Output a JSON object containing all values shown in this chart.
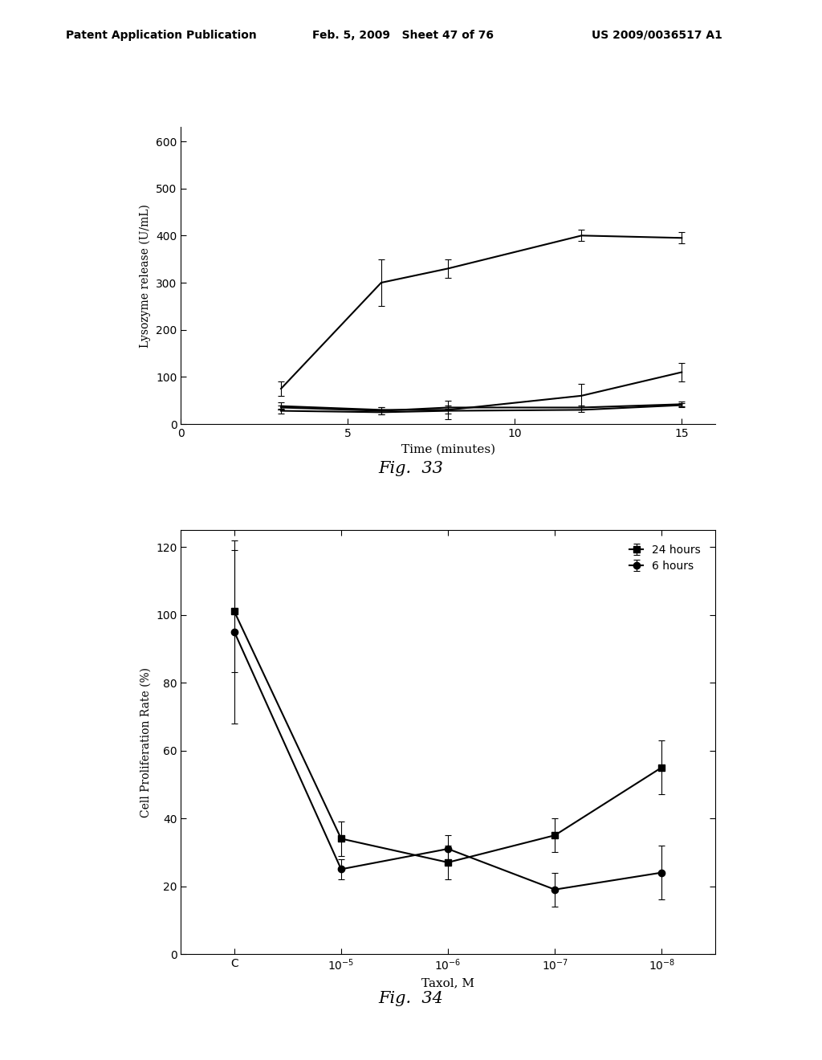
{
  "fig33": {
    "title": "Fig.  33",
    "xlabel": "Time (minutes)",
    "ylabel": "Lysozyme release (U/mL)",
    "xlim": [
      0,
      16
    ],
    "ylim": [
      0,
      630
    ],
    "yticks": [
      0,
      100,
      200,
      300,
      400,
      500,
      600
    ],
    "xticks": [
      0,
      5,
      10,
      15
    ],
    "lines": [
      {
        "x": [
          3,
          6,
          8,
          12,
          15
        ],
        "y": [
          75,
          300,
          330,
          400,
          395
        ],
        "yerr": [
          15,
          50,
          20,
          12,
          12
        ],
        "color": "#000000",
        "linewidth": 1.5
      },
      {
        "x": [
          3,
          6,
          8,
          12,
          15
        ],
        "y": [
          38,
          30,
          30,
          60,
          110
        ],
        "yerr": [
          8,
          5,
          20,
          25,
          20
        ],
        "color": "#000000",
        "linewidth": 1.5
      },
      {
        "x": [
          3,
          6,
          8,
          12,
          15
        ],
        "y": [
          35,
          28,
          35,
          35,
          42
        ],
        "yerr": [
          5,
          8,
          5,
          5,
          5
        ],
        "color": "#000000",
        "linewidth": 1.5
      },
      {
        "x": [
          3,
          6,
          8,
          12,
          15
        ],
        "y": [
          28,
          25,
          28,
          30,
          40
        ],
        "yerr": [
          5,
          5,
          5,
          5,
          5
        ],
        "color": "#000000",
        "linewidth": 1.5
      }
    ]
  },
  "fig34": {
    "title": "Fig.  34",
    "xlabel": "Taxol, M",
    "ylabel": "Cell Proliferation Rate (%)",
    "xlim": [
      -0.5,
      4.5
    ],
    "ylim": [
      0,
      125
    ],
    "yticks": [
      0,
      20,
      40,
      60,
      80,
      100,
      120
    ],
    "xtick_pos": [
      0,
      1,
      2,
      3,
      4
    ],
    "series_24h": {
      "label": "24 hours",
      "x": [
        0,
        1,
        2,
        3,
        4
      ],
      "y": [
        101,
        34,
        27,
        35,
        55
      ],
      "yerr": [
        18,
        5,
        5,
        5,
        8
      ],
      "marker": "s",
      "color": "#000000"
    },
    "series_6h": {
      "label": "6 hours",
      "x": [
        0,
        1,
        2,
        3,
        4
      ],
      "y": [
        95,
        25,
        31,
        19,
        24
      ],
      "yerr": [
        27,
        3,
        4,
        5,
        8
      ],
      "marker": "o",
      "color": "#000000"
    }
  },
  "header_line1": "Patent Application Publication",
  "header_line2": "Feb. 5, 2009   Sheet 47 of 76",
  "header_line3": "US 2009/0036517 A1",
  "background_color": "#ffffff"
}
